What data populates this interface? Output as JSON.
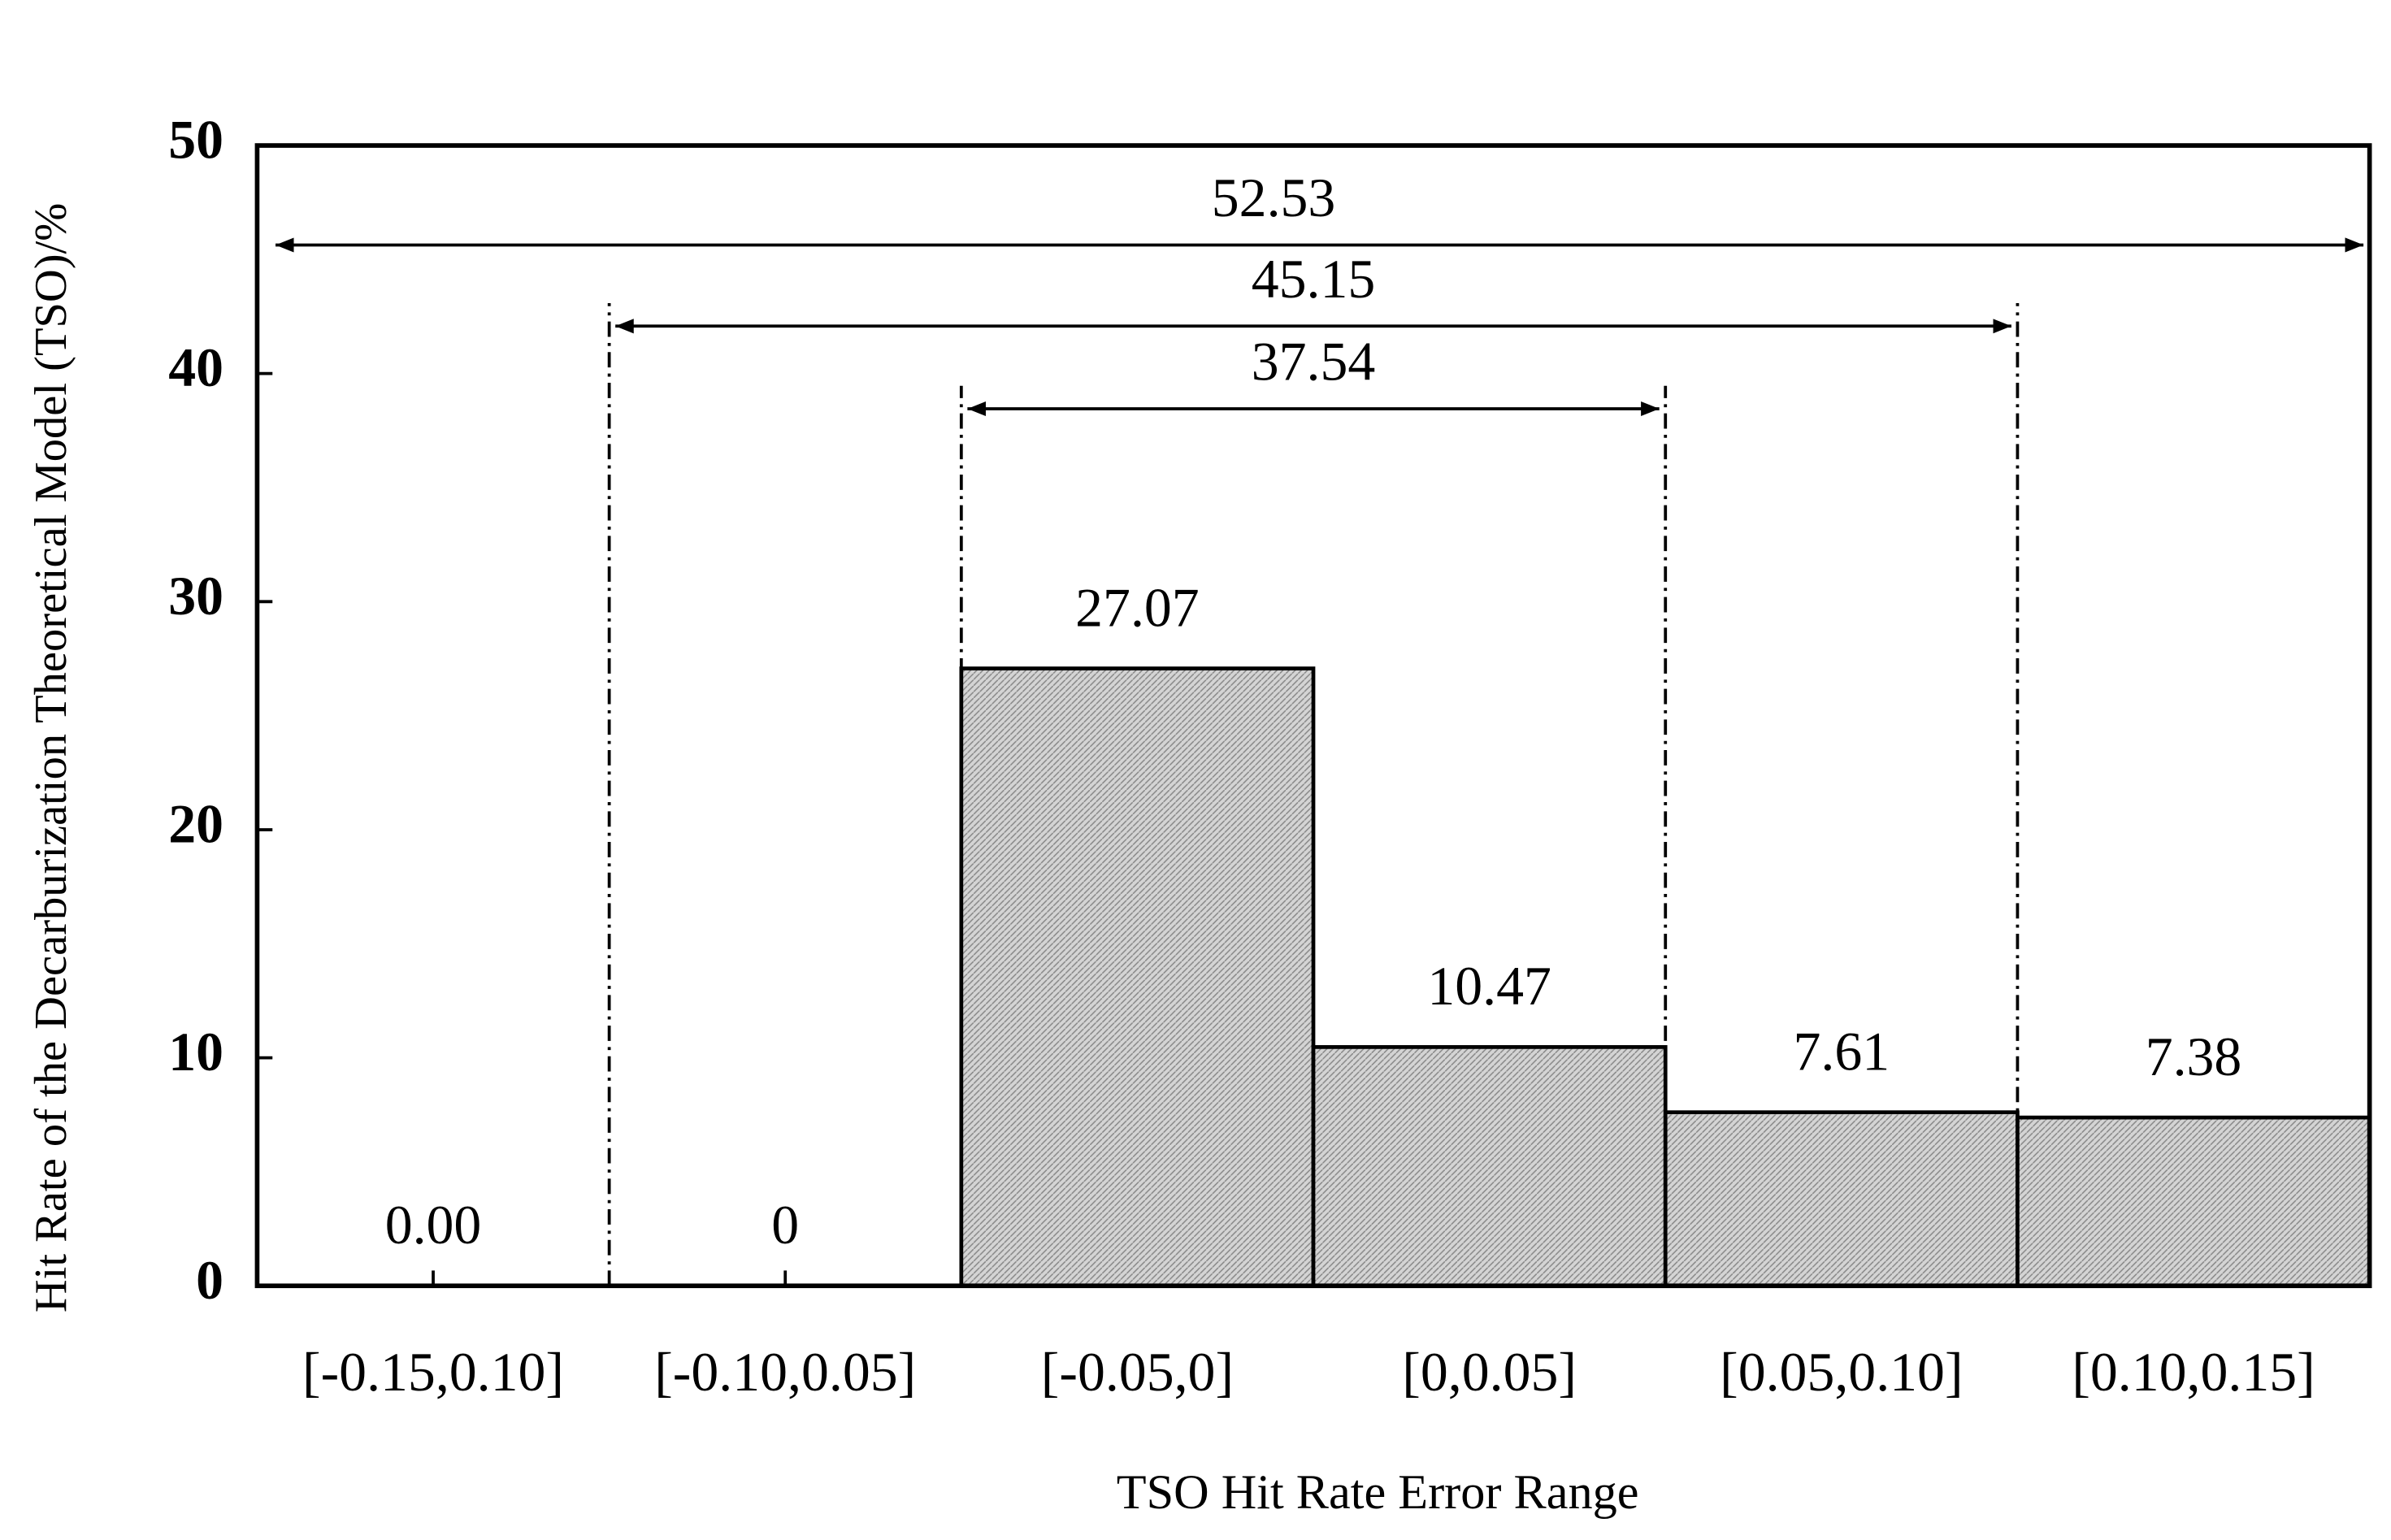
{
  "chart_data": {
    "type": "bar",
    "x_label": "TSO Hit Rate Error Range",
    "y_label": "Hit Rate of the Decarburization Theoretical Model (TSO)/%",
    "categories": [
      "[-0.15,0.10]",
      "[-0.10,0.05]",
      "[-0.05,0]",
      "[0,0.05]",
      "[0.05,0.10]",
      "[0.10,0.15]"
    ],
    "values": [
      0,
      0,
      27.07,
      10.47,
      7.61,
      7.38
    ],
    "value_labels": [
      "0.00",
      "0",
      "27.07",
      "10.47",
      "7.61",
      "7.38"
    ],
    "color": "#c8c8c8",
    "ylim": [
      0,
      50
    ],
    "yticks": [
      0,
      10,
      20,
      30,
      40,
      50
    ],
    "annotations": [
      52.53,
      45.15,
      37.54
    ]
  }
}
